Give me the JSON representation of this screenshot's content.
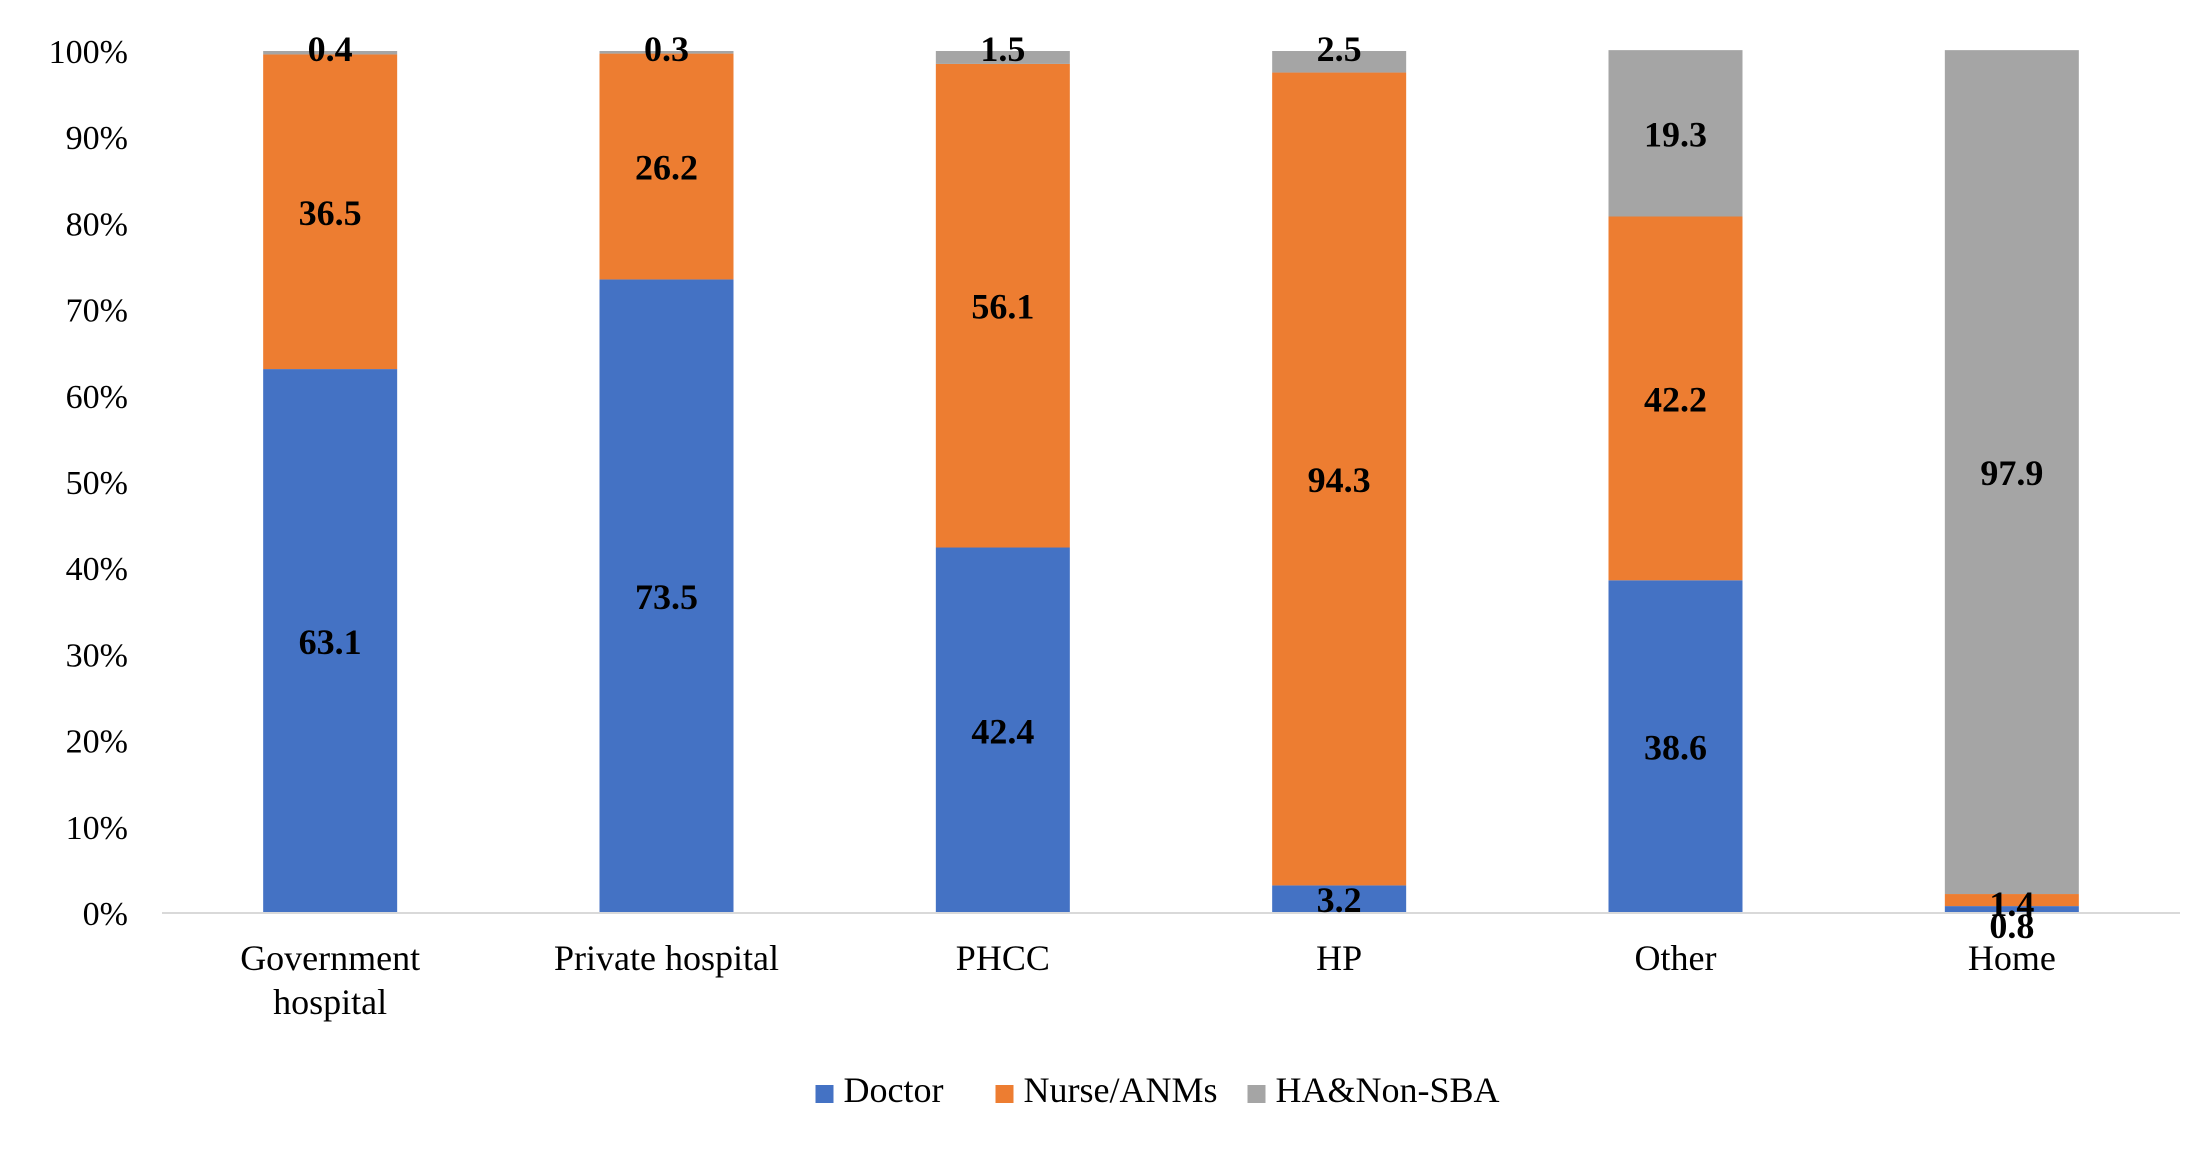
{
  "chart_data": {
    "type": "bar",
    "stacked": true,
    "categories": [
      "Government\nhospital",
      "Private hospital",
      "PHCC",
      "HP",
      "Other",
      "Home"
    ],
    "series": [
      {
        "name": "Doctor",
        "color": "#4472C4",
        "values": [
          63.1,
          73.5,
          42.4,
          3.2,
          38.6,
          0.8
        ]
      },
      {
        "name": "Nurse/ANMs",
        "color": "#ED7D31",
        "values": [
          36.5,
          26.2,
          56.1,
          94.3,
          42.2,
          1.4
        ]
      },
      {
        "name": "HA&Non-SBA",
        "color": "#A5A5A5",
        "values": [
          0.4,
          0.3,
          1.5,
          2.5,
          19.3,
          97.9
        ]
      }
    ],
    "y_ticks": [
      "0%",
      "10%",
      "20%",
      "30%",
      "40%",
      "50%",
      "60%",
      "70%",
      "80%",
      "90%",
      "100%"
    ],
    "ylim": [
      0,
      100
    ],
    "grid": false,
    "legend_position": "bottom"
  }
}
